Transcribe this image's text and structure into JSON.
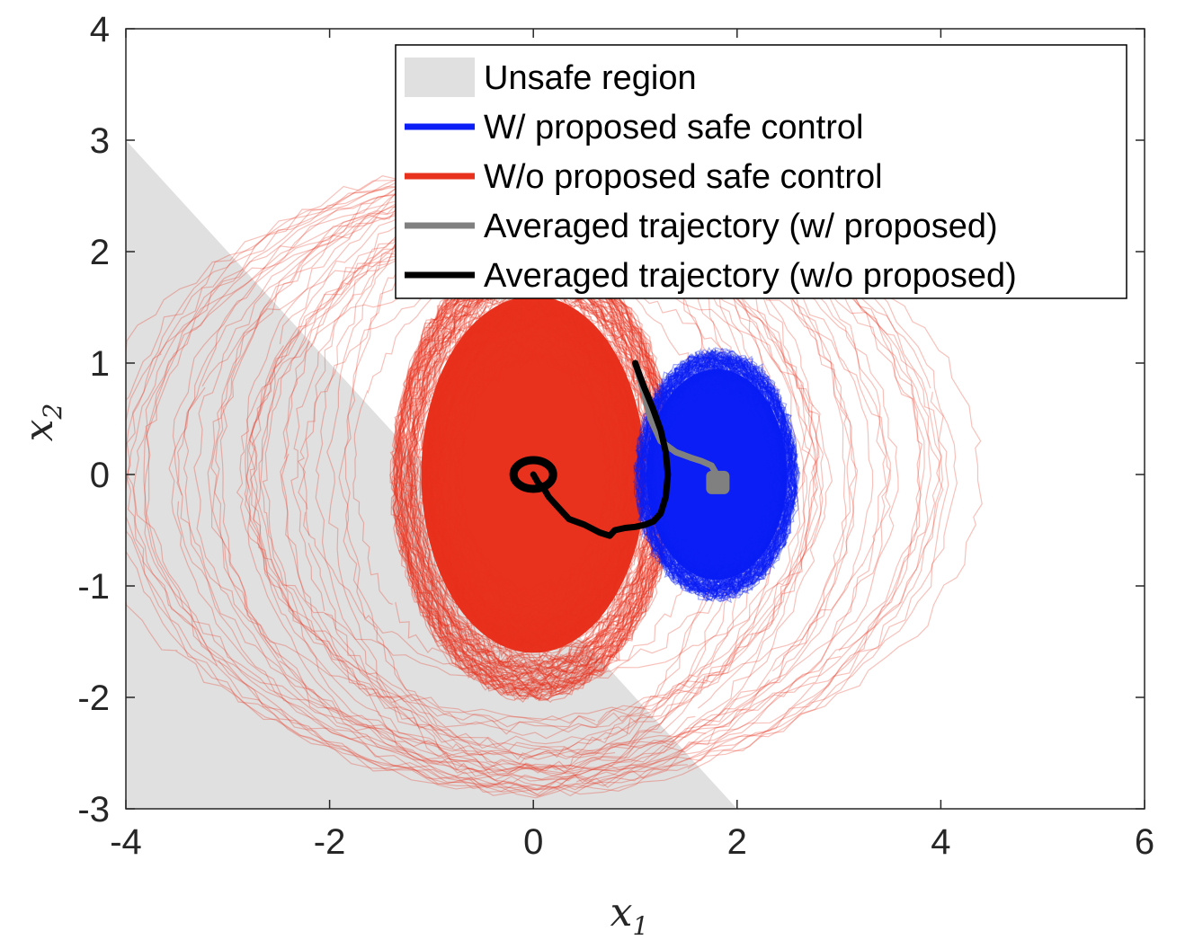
{
  "chart_data": {
    "type": "line",
    "title": "",
    "xlabel": {
      "base": "x",
      "sub": "1"
    },
    "ylabel": {
      "base": "x",
      "sub": "2"
    },
    "xlim": [
      -4,
      6
    ],
    "ylim": [
      -3,
      4
    ],
    "x_ticks": [
      -4,
      -2,
      0,
      2,
      4,
      6
    ],
    "y_ticks": [
      -3,
      -2,
      -1,
      0,
      1,
      2,
      3,
      4
    ],
    "grid": false,
    "legend_position": "top-right",
    "unsafe_region": {
      "polygon": [
        [
          -4,
          3
        ],
        [
          -4,
          -3
        ],
        [
          2,
          -3
        ]
      ],
      "color": "#e0e0e0"
    },
    "legend": [
      {
        "label": "Unsafe region",
        "kind": "patch",
        "color": "#e0e0e0"
      },
      {
        "label": "W/ proposed safe control",
        "kind": "line",
        "color": "#0a1ef5"
      },
      {
        "label": "W/o proposed safe control",
        "kind": "line",
        "color": "#e8321e"
      },
      {
        "label": "Averaged trajectory (w/ proposed)",
        "kind": "line",
        "color": "#808080"
      },
      {
        "label": "Averaged trajectory (w/o proposed)",
        "kind": "line",
        "color": "#000000"
      }
    ],
    "series": [
      {
        "label_ref": 1,
        "color": "#0a1ef5",
        "description_cloud": {
          "center": [
            1.8,
            0.0
          ],
          "radius_x": [
            0.75
          ],
          "radius_y": [
            1.05
          ]
        }
      },
      {
        "label_ref": 2,
        "color": "#e8321e",
        "description_cloud": {
          "center": [
            0.0,
            0.0
          ],
          "radius_x": [
            1.1
          ],
          "radius_y": [
            1.6
          ]
        }
      },
      {
        "label_ref": 3,
        "color": "#808080",
        "points": [
          [
            1.0,
            1.0
          ],
          [
            1.08,
            0.75
          ],
          [
            1.15,
            0.5
          ],
          [
            1.25,
            0.3
          ],
          [
            1.4,
            0.2
          ],
          [
            1.55,
            0.15
          ],
          [
            1.65,
            0.12
          ],
          [
            1.75,
            0.08
          ],
          [
            1.8,
            0.0
          ],
          [
            1.75,
            -0.05
          ],
          [
            1.82,
            -0.08
          ]
        ]
      },
      {
        "label_ref": 4,
        "color": "#000000",
        "points": [
          [
            1.0,
            1.0
          ],
          [
            1.08,
            0.8
          ],
          [
            1.17,
            0.6
          ],
          [
            1.25,
            0.4
          ],
          [
            1.3,
            0.2
          ],
          [
            1.32,
            0.0
          ],
          [
            1.3,
            -0.2
          ],
          [
            1.25,
            -0.35
          ],
          [
            1.18,
            -0.42
          ],
          [
            1.1,
            -0.45
          ],
          [
            1.0,
            -0.47
          ],
          [
            0.9,
            -0.48
          ],
          [
            0.8,
            -0.5
          ],
          [
            0.75,
            -0.55
          ],
          [
            0.65,
            -0.52
          ],
          [
            0.5,
            -0.45
          ],
          [
            0.35,
            -0.4
          ],
          [
            0.25,
            -0.3
          ],
          [
            0.15,
            -0.2
          ],
          [
            0.1,
            -0.12
          ],
          [
            0.05,
            -0.08
          ],
          [
            0.0,
            0.0
          ]
        ]
      }
    ]
  }
}
